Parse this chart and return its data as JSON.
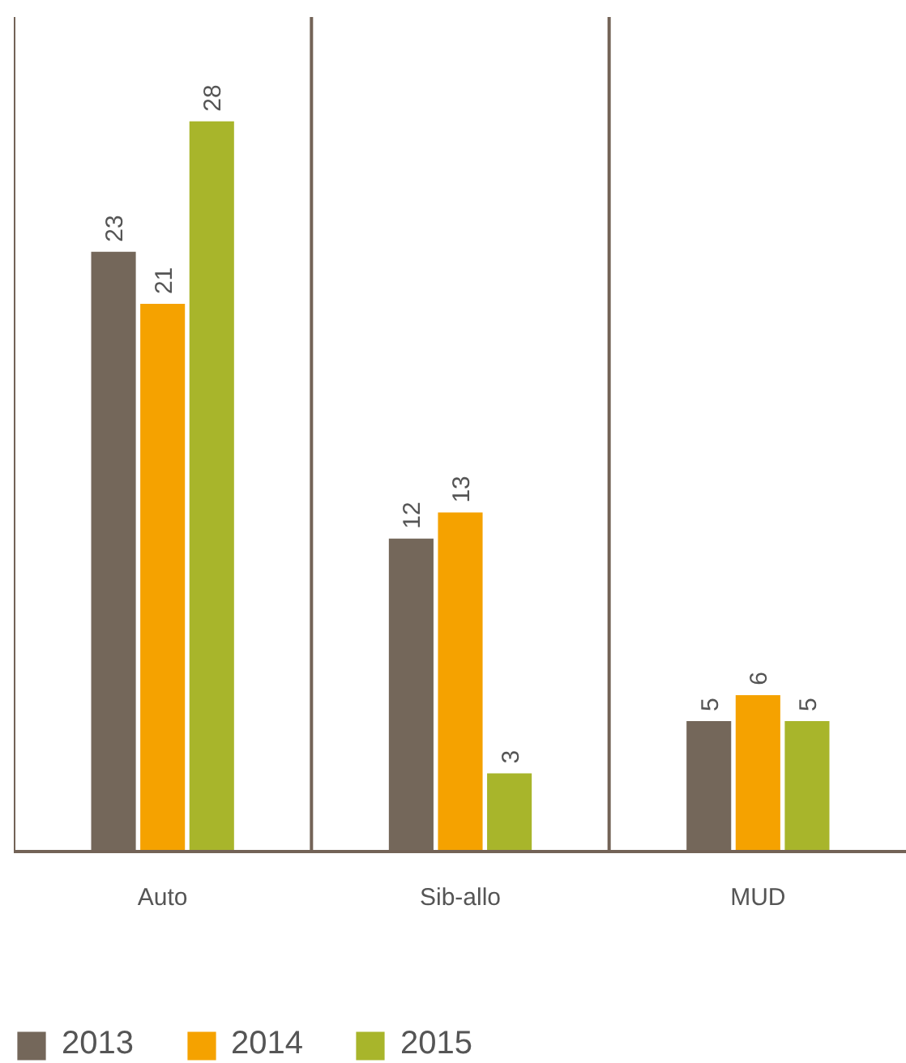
{
  "chart_data": {
    "type": "bar",
    "categories": [
      "Auto",
      "Sib-allo",
      "MUD"
    ],
    "series": [
      {
        "name": "2013",
        "color": "#74675a",
        "values": [
          23,
          12,
          5
        ]
      },
      {
        "name": "2014",
        "color": "#f5a200",
        "values": [
          21,
          13,
          6
        ]
      },
      {
        "name": "2015",
        "color": "#a8b52b",
        "values": [
          28,
          3,
          5
        ]
      }
    ],
    "ylim": [
      0,
      32
    ],
    "data_labels": true,
    "legend": "bottom left",
    "grid": false,
    "tick_labels": "x"
  }
}
